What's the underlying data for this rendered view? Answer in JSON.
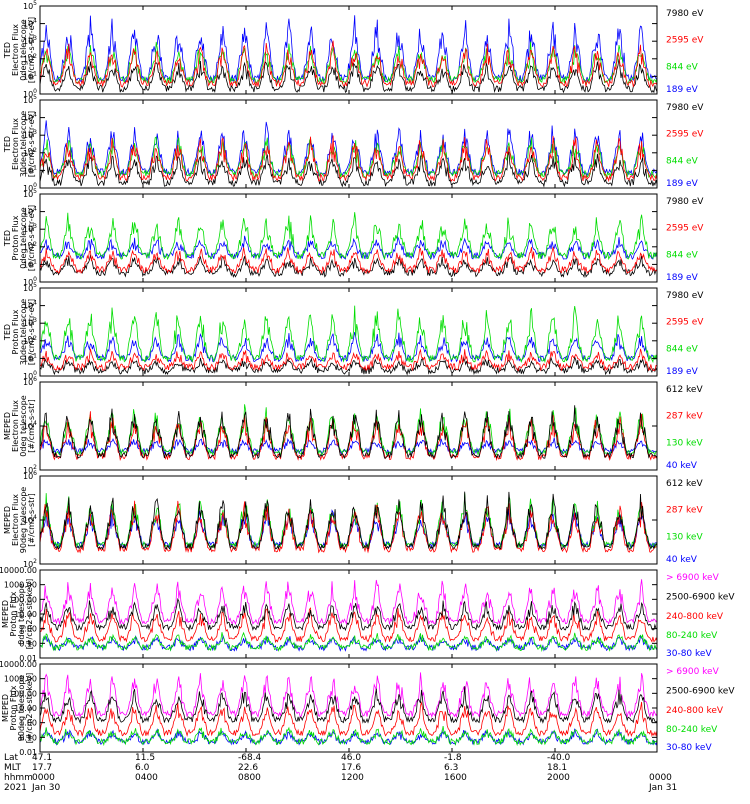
{
  "chart_data": [
    {
      "type": "line",
      "ylabel": [
        "TED",
        "Electron Flux",
        "0deg telescope",
        "[#/cm2-s-str-eV]"
      ],
      "log": true,
      "ylim_exp": [
        0,
        5
      ],
      "tick_labels": [
        "10^0",
        "10^1",
        "10^2",
        "10^3",
        "10^4",
        "10^5"
      ],
      "legend": [
        {
          "name": "7980 eV",
          "color": "#000000"
        },
        {
          "name": "2595 eV",
          "color": "#ff0000"
        },
        {
          "name": "844 eV",
          "color": "#00dd00"
        },
        {
          "name": "189 eV",
          "color": "#0000ff"
        }
      ],
      "series_draw_order": [
        "7980 eV",
        "189 eV",
        "844 eV",
        "2595 eV"
      ],
      "series_base_exp": [
        0.3,
        0.6,
        0.8,
        0.9
      ],
      "series_peak_exp": [
        2.0,
        3.0,
        3.0,
        4.5
      ]
    },
    {
      "type": "line",
      "ylabel": [
        "TED",
        "Electron Flux",
        "30deg telescope",
        "[#/cm2-s-str-eV]"
      ],
      "log": true,
      "ylim_exp": [
        0,
        5
      ],
      "tick_labels": [
        "10^0",
        "10^1",
        "10^2",
        "10^3",
        "10^4",
        "10^5"
      ],
      "legend": [
        {
          "name": "7980 eV",
          "color": "#000000"
        },
        {
          "name": "2595 eV",
          "color": "#ff0000"
        },
        {
          "name": "844 eV",
          "color": "#00dd00"
        },
        {
          "name": "189 eV",
          "color": "#0000ff"
        }
      ],
      "series_draw_order": [
        "7980 eV",
        "189 eV",
        "844 eV",
        "2595 eV"
      ],
      "series_base_exp": [
        0.3,
        0.6,
        0.8,
        0.9
      ],
      "series_peak_exp": [
        2.0,
        3.0,
        3.0,
        3.8
      ]
    },
    {
      "type": "line",
      "ylabel": [
        "TED",
        "Proton Flux",
        "0deg telescope",
        "[#/cm2-s-str-eV]"
      ],
      "log": true,
      "ylim_exp": [
        0,
        5
      ],
      "tick_labels": [
        "10^0",
        "10^1",
        "10^2",
        "10^3",
        "10^4",
        "10^5"
      ],
      "legend": [
        {
          "name": "7980 eV",
          "color": "#000000"
        },
        {
          "name": "2595 eV",
          "color": "#ff0000"
        },
        {
          "name": "844 eV",
          "color": "#00dd00"
        },
        {
          "name": "189 eV",
          "color": "#0000ff"
        }
      ],
      "series_draw_order": [
        "7980 eV",
        "2595 eV",
        "189 eV",
        "844 eV"
      ],
      "series_base_exp": [
        0.5,
        0.7,
        1.5,
        1.5
      ],
      "series_peak_exp": [
        1.5,
        2.0,
        4.0,
        2.5
      ]
    },
    {
      "type": "line",
      "ylabel": [
        "TED",
        "Proton Flux",
        "30deg telescope",
        "[#/cm2-s-str-eV]"
      ],
      "log": true,
      "ylim_exp": [
        0,
        5
      ],
      "tick_labels": [
        "10^0",
        "10^1",
        "10^2",
        "10^3",
        "10^4",
        "10^5"
      ],
      "legend": [
        {
          "name": "7980 eV",
          "color": "#000000"
        },
        {
          "name": "2595 eV",
          "color": "#ff0000"
        },
        {
          "name": "844 eV",
          "color": "#00dd00"
        },
        {
          "name": "189 eV",
          "color": "#0000ff"
        }
      ],
      "series_draw_order": [
        "7980 eV",
        "2595 eV",
        "189 eV",
        "844 eV"
      ],
      "series_base_exp": [
        0.3,
        0.5,
        1.0,
        1.0
      ],
      "series_peak_exp": [
        1.0,
        1.5,
        4.0,
        2.5
      ]
    },
    {
      "type": "line",
      "ylabel": [
        "MEPED",
        "Electron Flux",
        "0deg telescope",
        "[#/cm2-s-str]"
      ],
      "log": true,
      "ylim_exp": [
        1,
        7
      ],
      "tick_labels": [
        "10^2",
        "10^4",
        "10^6"
      ],
      "legend": [
        {
          "name": "612 keV",
          "color": "#000000"
        },
        {
          "name": "287 keV",
          "color": "#ff0000"
        },
        {
          "name": "130 keV",
          "color": "#00dd00"
        },
        {
          "name": "40 keV",
          "color": "#0000ff"
        }
      ],
      "series_draw_order": [
        "40 keV",
        "130 keV",
        "287 keV",
        "612 keV"
      ],
      "series_base_exp": [
        2.0,
        1.9,
        2.2,
        2.3
      ],
      "series_peak_exp": [
        5.5,
        5.0,
        5.5,
        3.2
      ]
    },
    {
      "type": "line",
      "ylabel": [
        "MEPED",
        "Electron Flux",
        "90deg telescope",
        "[#/cm2-s-str]"
      ],
      "log": true,
      "ylim_exp": [
        1,
        7
      ],
      "tick_labels": [
        "10^2",
        "10^4",
        "10^6"
      ],
      "legend": [
        {
          "name": "612 keV",
          "color": "#000000"
        },
        {
          "name": "287 keV",
          "color": "#ff0000"
        },
        {
          "name": "130 keV",
          "color": "#00dd00"
        },
        {
          "name": "40 keV",
          "color": "#0000ff"
        }
      ],
      "series_draw_order": [
        "40 keV",
        "130 keV",
        "287 keV",
        "612 keV"
      ],
      "series_base_exp": [
        2.2,
        2.0,
        2.3,
        2.3
      ],
      "series_peak_exp": [
        6.0,
        5.5,
        5.8,
        5.0
      ]
    },
    {
      "type": "line",
      "ylabel": [
        "MEPED",
        "Proton Flux",
        "0deg telescope",
        "[#/cm2-s-str-keV]"
      ],
      "log": true,
      "ylim_exp": [
        -2,
        4
      ],
      "tick_labels": [
        "0.01",
        "0.10",
        "1.00",
        "10.00",
        "100.00",
        "1000.00",
        "10000.00"
      ],
      "legend": [
        {
          "name": "> 6900 keV",
          "color": "#ff00ff"
        },
        {
          "name": "2500-6900 keV",
          "color": "#000000"
        },
        {
          "name": "240-800 keV",
          "color": "#ff0000"
        },
        {
          "name": "80-240 keV",
          "color": "#00dd00"
        },
        {
          "name": "30-80 keV",
          "color": "#0000ff"
        }
      ],
      "series_draw_order": [
        "30-80 keV",
        "80-240 keV",
        "240-800 keV",
        "> 6900 keV",
        "2500-6900 keV"
      ],
      "series_base_exp": [
        0.5,
        0.1,
        -0.7,
        -1.3,
        -1.3
      ],
      "series_peak_exp": [
        3.5,
        2.0,
        1.5,
        -0.3,
        -0.5
      ]
    },
    {
      "type": "line",
      "ylabel": [
        "MEPED",
        "Proton Flux",
        "90deg telescope",
        "[#/cm2-s-str-keV]"
      ],
      "log": true,
      "ylim_exp": [
        -2,
        4
      ],
      "tick_labels": [
        "0.01",
        "0.10",
        "1.00",
        "10.00",
        "100.00",
        "1000.00",
        "10000.00"
      ],
      "legend": [
        {
          "name": "> 6900 keV",
          "color": "#ff00ff"
        },
        {
          "name": "2500-6900 keV",
          "color": "#000000"
        },
        {
          "name": "240-800 keV",
          "color": "#ff0000"
        },
        {
          "name": "80-240 keV",
          "color": "#00dd00"
        },
        {
          "name": "30-80 keV",
          "color": "#0000ff"
        }
      ],
      "series_draw_order": [
        "30-80 keV",
        "80-240 keV",
        "240-800 keV",
        "> 6900 keV",
        "2500-6900 keV"
      ],
      "series_base_exp": [
        0.6,
        0.2,
        -0.7,
        -1.3,
        -1.3
      ],
      "series_peak_exp": [
        3.5,
        2.5,
        1.5,
        -0.3,
        -0.5
      ]
    }
  ],
  "orbit_table": {
    "row_labels": [
      "Lat",
      "MLT",
      "hhmm",
      "2021"
    ],
    "columns": [
      {
        "lat": "47.1",
        "mlt": "17.7",
        "hhmm": "0000",
        "date": "Jan 30"
      },
      {
        "lat": "11.5",
        "mlt": "6.0",
        "hhmm": "0400",
        "date": ""
      },
      {
        "lat": "-68.4",
        "mlt": "22.6",
        "hhmm": "0800",
        "date": ""
      },
      {
        "lat": "46.0",
        "mlt": "17.6",
        "hhmm": "1200",
        "date": ""
      },
      {
        "lat": "-1.8",
        "mlt": "6.3",
        "hhmm": "1600",
        "date": ""
      },
      {
        "lat": "-40.0",
        "mlt": "18.1",
        "hhmm": "2000",
        "date": ""
      },
      {
        "lat": "",
        "mlt": "",
        "hhmm": "0000",
        "date": "Jan 31"
      }
    ]
  }
}
